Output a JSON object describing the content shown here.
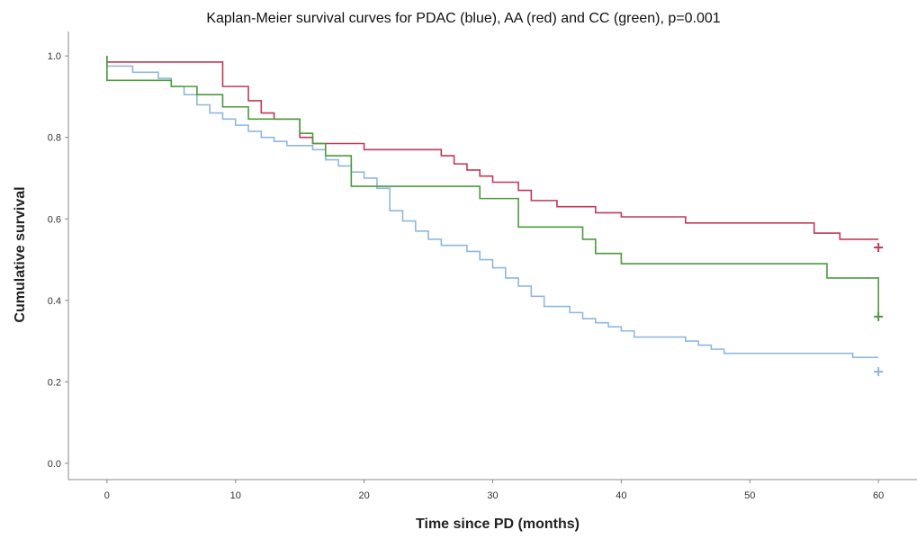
{
  "chart_data": {
    "type": "line",
    "step": true,
    "title": "Kaplan-Meier survival curves for PDAC (blue), AA (red) and CC (green), p=0.001",
    "xlabel": "Time since PD (months)",
    "ylabel": "Cumulative survival",
    "xlim": [
      -3,
      63
    ],
    "ylim": [
      -0.04,
      1.06
    ],
    "xticks": [
      "0",
      "10",
      "20",
      "30",
      "40",
      "50",
      "60"
    ],
    "yticks": [
      "0.0",
      "0.2",
      "0.4",
      "0.6",
      "0.8",
      "1.0"
    ],
    "grid": false,
    "censor_marker": "+",
    "series": [
      {
        "color": "#8fb8de",
        "start": [
          0,
          1.0
        ],
        "steps": [
          [
            0,
            0.975
          ],
          [
            2,
            0.96
          ],
          [
            4,
            0.945
          ],
          [
            5,
            0.925
          ],
          [
            6,
            0.905
          ],
          [
            7,
            0.88
          ],
          [
            8,
            0.86
          ],
          [
            9,
            0.845
          ],
          [
            10,
            0.83
          ],
          [
            11,
            0.815
          ],
          [
            12,
            0.8
          ],
          [
            13,
            0.79
          ],
          [
            14,
            0.78
          ],
          [
            16,
            0.77
          ],
          [
            17,
            0.745
          ],
          [
            18,
            0.73
          ],
          [
            19,
            0.715
          ],
          [
            20,
            0.7
          ],
          [
            21,
            0.675
          ],
          [
            22,
            0.62
          ],
          [
            23,
            0.595
          ],
          [
            24,
            0.57
          ],
          [
            25,
            0.55
          ],
          [
            26,
            0.535
          ],
          [
            28,
            0.52
          ],
          [
            29,
            0.5
          ],
          [
            30,
            0.48
          ],
          [
            31,
            0.455
          ],
          [
            32,
            0.435
          ],
          [
            33,
            0.41
          ],
          [
            34,
            0.385
          ],
          [
            36,
            0.37
          ],
          [
            37,
            0.355
          ],
          [
            38,
            0.345
          ],
          [
            39,
            0.335
          ],
          [
            40,
            0.325
          ],
          [
            41,
            0.31
          ],
          [
            45,
            0.3
          ],
          [
            46,
            0.29
          ],
          [
            47,
            0.28
          ],
          [
            48,
            0.27
          ],
          [
            58,
            0.26
          ]
        ],
        "end": [
          60,
          0.225
        ]
      },
      {
        "color": "#c0395a",
        "start": [
          0,
          0.985
        ],
        "steps": [
          [
            9,
            0.925
          ],
          [
            11,
            0.89
          ],
          [
            12,
            0.86
          ],
          [
            13,
            0.845
          ],
          [
            15,
            0.8
          ],
          [
            16,
            0.785
          ],
          [
            20,
            0.77
          ],
          [
            26,
            0.755
          ],
          [
            27,
            0.735
          ],
          [
            28,
            0.72
          ],
          [
            29,
            0.705
          ],
          [
            30,
            0.69
          ],
          [
            32,
            0.67
          ],
          [
            33,
            0.645
          ],
          [
            35,
            0.63
          ],
          [
            38,
            0.615
          ],
          [
            40,
            0.605
          ],
          [
            45,
            0.59
          ],
          [
            55,
            0.565
          ],
          [
            57,
            0.55
          ]
        ],
        "end": [
          60,
          0.53
        ]
      },
      {
        "color": "#4c9a3e",
        "start": [
          0,
          1.0
        ],
        "steps": [
          [
            0,
            0.94
          ],
          [
            5,
            0.925
          ],
          [
            7,
            0.905
          ],
          [
            9,
            0.875
          ],
          [
            11,
            0.845
          ],
          [
            15,
            0.81
          ],
          [
            16,
            0.785
          ],
          [
            17,
            0.755
          ],
          [
            19,
            0.68
          ],
          [
            29,
            0.65
          ],
          [
            32,
            0.58
          ],
          [
            37,
            0.55
          ],
          [
            38,
            0.515
          ],
          [
            40,
            0.49
          ],
          [
            56,
            0.455
          ],
          [
            60,
            0.36
          ]
        ],
        "end": [
          60,
          0.36
        ]
      }
    ]
  }
}
